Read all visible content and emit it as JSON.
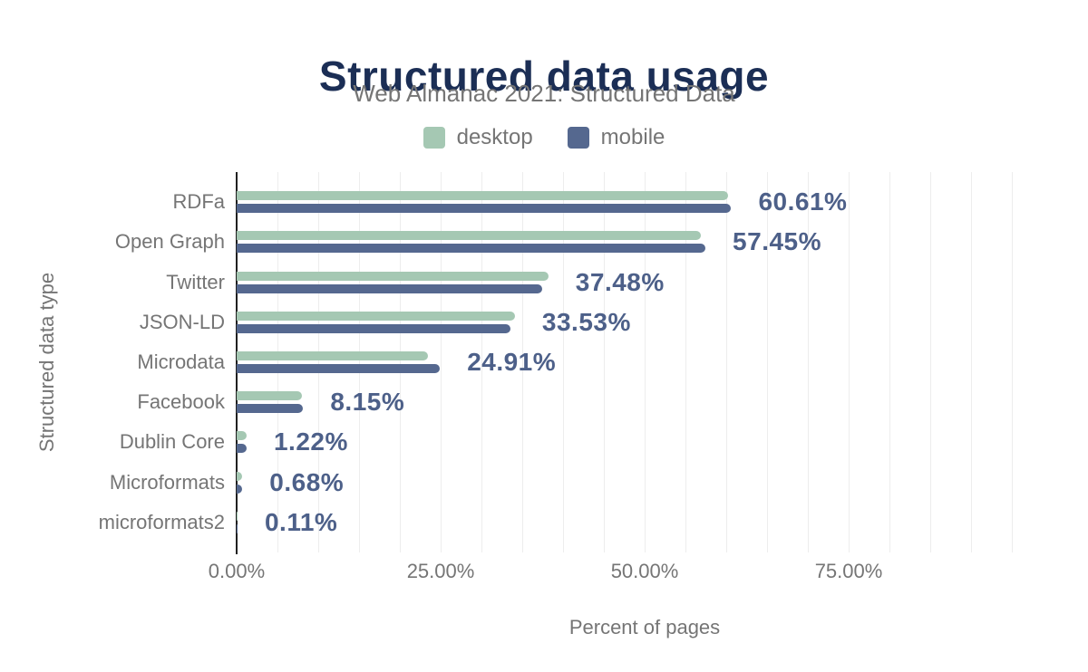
{
  "title": "Structured data usage",
  "subtitle": "Web Almanac 2021: Structured Data",
  "legend": {
    "items": [
      {
        "label": "desktop",
        "color": "#a5c8b3"
      },
      {
        "label": "mobile",
        "color": "#55688f"
      }
    ]
  },
  "colors": {
    "background": "#ffffff",
    "title": "#1b2e55",
    "muted_text": "#757575",
    "axis_line": "#202020",
    "gridline": "#ededed",
    "value_label": "#4d6089",
    "desktop_bar": "#a5c8b3",
    "mobile_bar": "#55688f"
  },
  "chart_data": {
    "type": "bar",
    "orientation": "horizontal",
    "title": "Structured data usage",
    "subtitle": "Web Almanac 2021: Structured Data",
    "xlabel": "Percent of pages",
    "ylabel": "Structured data type",
    "xlim": [
      0,
      100
    ],
    "grid": "vertical minor gridlines every 5%",
    "legend_position": "top center",
    "categories": [
      "RDFa",
      "Open Graph",
      "Twitter",
      "JSON-LD",
      "Microdata",
      "Facebook",
      "Dublin Core",
      "Microformats",
      "microformats2"
    ],
    "series": [
      {
        "name": "desktop",
        "color": "#a5c8b3",
        "values": [
          60.2,
          56.9,
          38.2,
          34.1,
          23.4,
          8.0,
          1.2,
          0.7,
          0.1
        ]
      },
      {
        "name": "mobile",
        "color": "#55688f",
        "values": [
          60.61,
          57.45,
          37.48,
          33.53,
          24.91,
          8.15,
          1.22,
          0.68,
          0.11
        ]
      }
    ],
    "data_labels": [
      "60.61%",
      "57.45%",
      "37.48%",
      "33.53%",
      "24.91%",
      "8.15%",
      "1.22%",
      "0.68%",
      "0.11%"
    ],
    "data_labels_series": "mobile",
    "x_ticks": [
      {
        "label": "0.00%",
        "value": 0
      },
      {
        "label": "25.00%",
        "value": 25
      },
      {
        "label": "50.00%",
        "value": 50
      },
      {
        "label": "75.00%",
        "value": 75
      }
    ]
  }
}
